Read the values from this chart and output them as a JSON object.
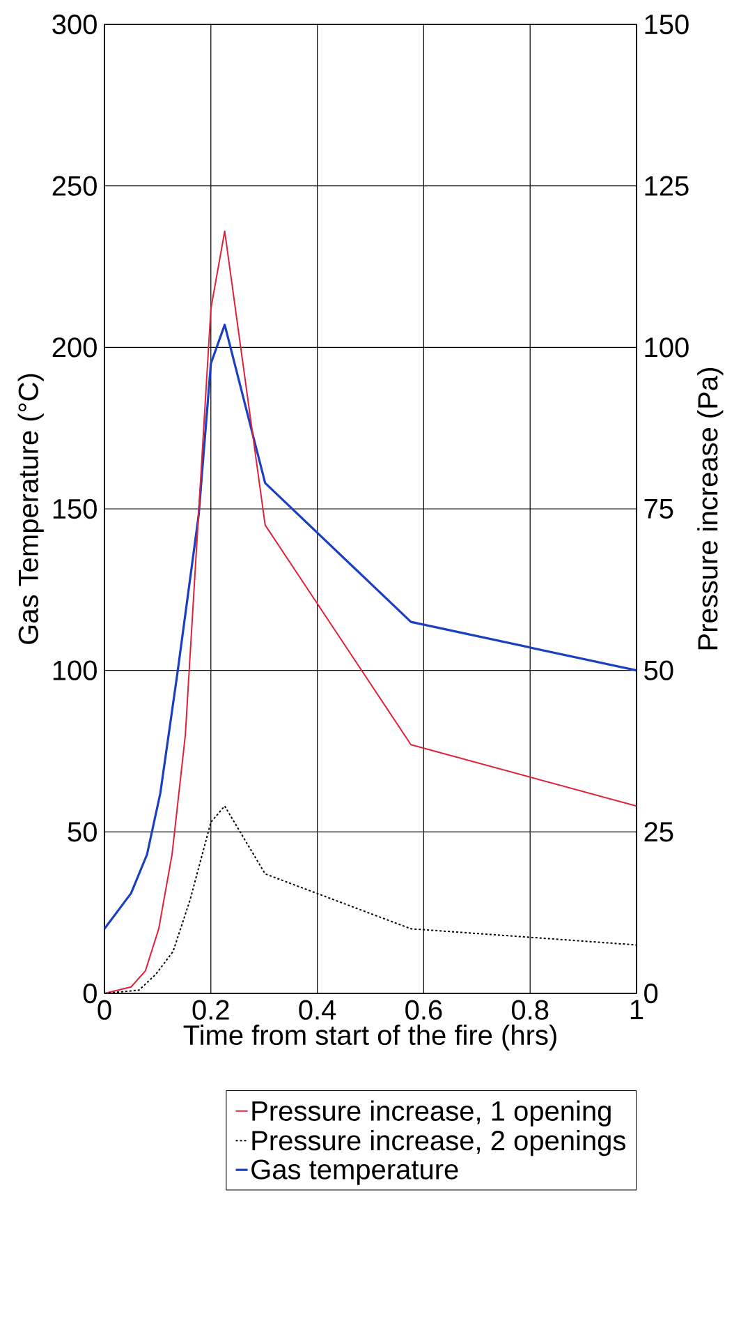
{
  "chart_data": {
    "type": "line",
    "xlabel": "Time from start of the fire (hrs)",
    "ylabel": "Gas Temperature (°C)",
    "y2label": "Pressure increase (Pa)",
    "xlim": [
      0,
      1
    ],
    "xticks": [
      0,
      0.2,
      0.4,
      0.6,
      0.8,
      1
    ],
    "ylim": [
      0,
      300
    ],
    "yticks": [
      0,
      50,
      100,
      150,
      200,
      250,
      300
    ],
    "y2lim": [
      0,
      150
    ],
    "y2ticks": [
      0,
      25,
      50,
      75,
      100,
      125,
      150
    ],
    "grid": true,
    "legend": "bottom right",
    "marker": "none",
    "series": [
      {
        "name": "Pressure increase, 1 opening",
        "color": "#e0203a",
        "axis": "y2",
        "line_style": "solid",
        "x": [
          0,
          0.05,
          0.077,
          0.102,
          0.127,
          0.152,
          0.2,
          0.226,
          0.302,
          0.576,
          1
        ],
        "values": [
          0,
          1,
          3.5,
          10,
          21.5,
          40,
          106,
          118,
          72.5,
          38.5,
          29
        ]
      },
      {
        "name": "Pressure increase, 2 openings",
        "color": "#000000",
        "axis": "y2",
        "line_style": "dashed",
        "x": [
          0,
          0.065,
          0.097,
          0.129,
          0.161,
          0.2,
          0.226,
          0.302,
          0.576,
          1
        ],
        "values": [
          0,
          0.5,
          3,
          6.5,
          14.5,
          26.5,
          29,
          18.5,
          10,
          7.5
        ]
      },
      {
        "name": "Gas temperature",
        "color": "#1a3fc0",
        "axis": "y",
        "line_style": "solid",
        "x": [
          0,
          0.05,
          0.08,
          0.105,
          0.137,
          0.177,
          0.2,
          0.226,
          0.302,
          0.576,
          1
        ],
        "values": [
          20,
          31,
          43,
          62,
          99,
          148,
          195,
          207,
          158,
          115,
          100
        ]
      }
    ]
  }
}
